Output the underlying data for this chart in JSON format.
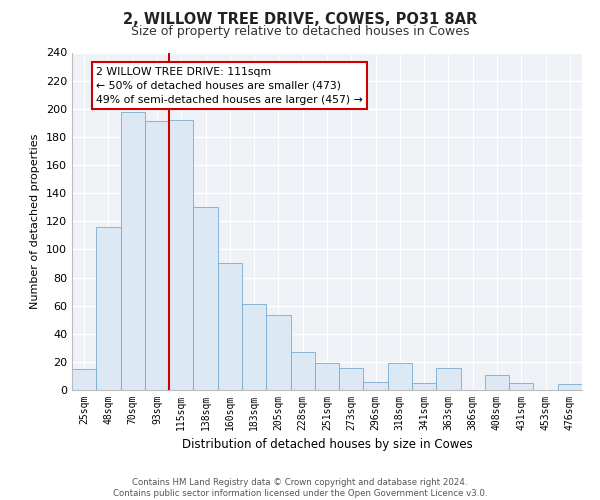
{
  "title": "2, WILLOW TREE DRIVE, COWES, PO31 8AR",
  "subtitle": "Size of property relative to detached houses in Cowes",
  "xlabel": "Distribution of detached houses by size in Cowes",
  "ylabel": "Number of detached properties",
  "bar_labels": [
    "25sqm",
    "48sqm",
    "70sqm",
    "93sqm",
    "115sqm",
    "138sqm",
    "160sqm",
    "183sqm",
    "205sqm",
    "228sqm",
    "251sqm",
    "273sqm",
    "296sqm",
    "318sqm",
    "341sqm",
    "363sqm",
    "386sqm",
    "408sqm",
    "431sqm",
    "453sqm",
    "476sqm"
  ],
  "bar_values": [
    15,
    116,
    198,
    191,
    192,
    130,
    90,
    61,
    53,
    27,
    19,
    16,
    6,
    19,
    5,
    16,
    0,
    11,
    5,
    0,
    4
  ],
  "bar_color_fill": "#dce8f3",
  "bar_color_edge": "#7aabcf",
  "highlight_line_label": "2 WILLOW TREE DRIVE: 111sqm",
  "annotation_line1": "← 50% of detached houses are smaller (473)",
  "annotation_line2": "49% of semi-detached houses are larger (457) →",
  "box_color": "#cc0000",
  "ylim": [
    0,
    240
  ],
  "yticks": [
    0,
    20,
    40,
    60,
    80,
    100,
    120,
    140,
    160,
    180,
    200,
    220,
    240
  ],
  "footer_line1": "Contains HM Land Registry data © Crown copyright and database right 2024.",
  "footer_line2": "Contains public sector information licensed under the Open Government Licence v3.0.",
  "bg_color": "#eef2f7"
}
